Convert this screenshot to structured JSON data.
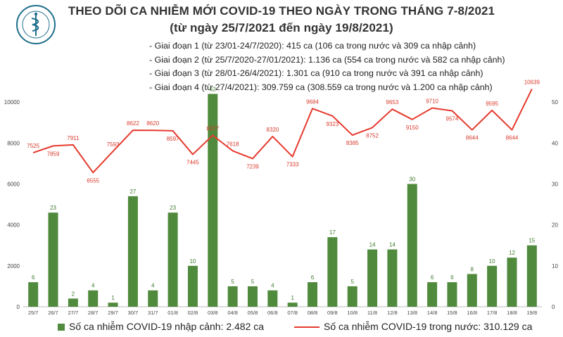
{
  "header": {
    "title_line1": "THEO DÕI CA NHIỄM MỚI COVID-19 THEO NGÀY TRONG THÁNG 7-8/2021",
    "title_line2": "(từ ngày 25/7/2021 đến ngày 19/8/2021)"
  },
  "phases": [
    "- Giai đoạn 1 (từ 23/01-24/7/2020): 415 ca (106 ca trong nước và 309 ca nhập cảnh)",
    "- Giai đoạn 2 (từ 25/7/2020-27/01/2021): 1.136 ca (554 ca trong nước và 582 ca nhập cảnh)",
    "- Giai đoạn 3 (từ 28/01-26/4/2021): 1.301 ca (910 ca trong nước và 391 ca nhập cảnh)",
    "- Giai đoạn 4 (từ 27/4/2021): 309.759 ca (308.559 ca trong nước và 1.200 ca nhập cảnh)"
  ],
  "colors": {
    "bar": "#508a3c",
    "line": "#e63a2e",
    "bar_label": "#3f7a30",
    "line_label": "#d93a2c",
    "logo": "#1f6f8b"
  },
  "logo": {
    "icon": "ministry-of-health-seal-icon"
  },
  "legend": {
    "bar_label": "Số ca nhiễm COVID-19 nhập cảnh: 2.482 ca",
    "line_label": "Số ca nhiễm COVID-19 trong nước: 310.129 ca"
  },
  "chart_data": {
    "type": "bar",
    "categories": [
      "25/7",
      "26/7",
      "27/7",
      "28/7",
      "29/7",
      "30/7",
      "31/7",
      "01/8",
      "02/8",
      "03/8",
      "04/8",
      "05/8",
      "06/8",
      "07/8",
      "08/8",
      "09/8",
      "10/8",
      "11/8",
      "12/8",
      "13/8",
      "14/8",
      "15/8",
      "16/8",
      "17/8",
      "18/8",
      "19/8"
    ],
    "series": [
      {
        "name": "Số ca nhiễm COVID-19 nhập cảnh: 2.482 ca",
        "type": "bar",
        "axis": "right",
        "values": [
          6,
          23,
          2,
          4,
          1,
          27,
          4,
          23,
          10,
          52,
          5,
          5,
          4,
          1,
          6,
          17,
          5,
          14,
          14,
          30,
          6,
          6,
          8,
          10,
          12,
          15
        ]
      },
      {
        "name": "Số ca nhiễm COVID-19 trong nước: 310.129 ca",
        "type": "line",
        "axis": "left",
        "values": [
          7525,
          7859,
          7911,
          6555,
          7593,
          8622,
          8620,
          8597,
          7445,
          8377,
          7618,
          7239,
          8320,
          7333,
          9684,
          9323,
          8385,
          8752,
          9653,
          9150,
          9710,
          9574,
          8644,
          9595,
          8644,
          10639
        ]
      }
    ],
    "left_axis": {
      "ticks": [
        "0",
        "2000",
        "4000",
        "6000",
        "8000",
        "10000"
      ],
      "ylim": [
        0,
        11000
      ]
    },
    "right_axis": {
      "ticks": [
        "0",
        "10",
        "20",
        "30",
        "40",
        "50"
      ],
      "ylim": [
        0,
        55
      ]
    },
    "grid": false,
    "legend_position": "bottom"
  }
}
